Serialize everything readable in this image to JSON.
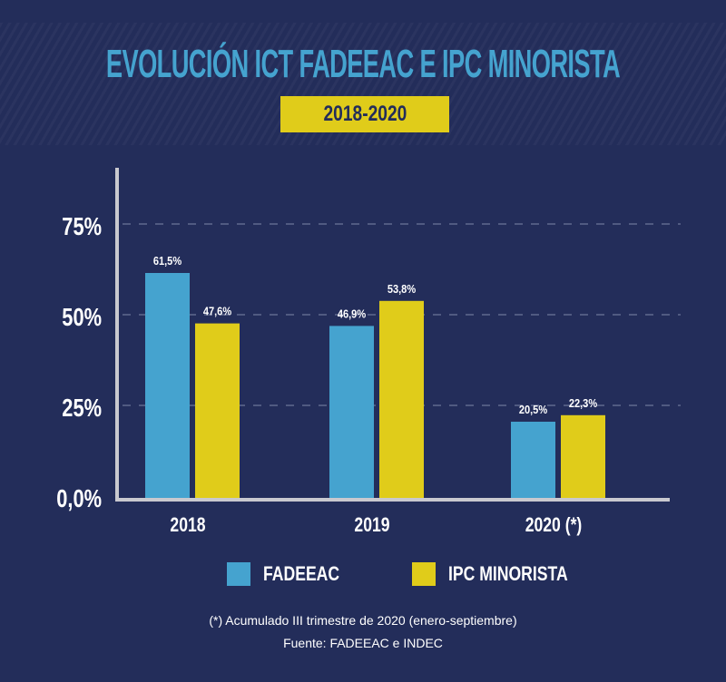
{
  "chart_data": {
    "type": "bar",
    "title": "EVOLUCIÓN ICT FADEEAC E IPC MINORISTA",
    "subtitle": "2018-2020",
    "categories": [
      "2018",
      "2019",
      "2020 (*)"
    ],
    "series": [
      {
        "name": "FADEEAC",
        "color": "#45a3cf",
        "values": [
          61.5,
          46.9,
          20.5
        ],
        "labels": [
          "61,5%",
          "46,9%",
          "20,5%"
        ]
      },
      {
        "name": "IPC MINORISTA",
        "color": "#e0cc1a",
        "values": [
          47.6,
          53.8,
          22.3
        ],
        "labels": [
          "47,6%",
          "53,8%",
          "22,3%"
        ]
      }
    ],
    "yticks": [
      0,
      25,
      50,
      75
    ],
    "ytick_labels": [
      "0,0%",
      "25%",
      "50%",
      "75%"
    ],
    "ylim": [
      0,
      90
    ],
    "grid": "dashed horizontal",
    "legend": "bottom",
    "xlabel": "",
    "ylabel": ""
  },
  "footnotes": {
    "note": "(*) Acumulado III trimestre de 2020 (enero-septiembre)",
    "source": "Fuente: FADEEAC e INDEC"
  }
}
